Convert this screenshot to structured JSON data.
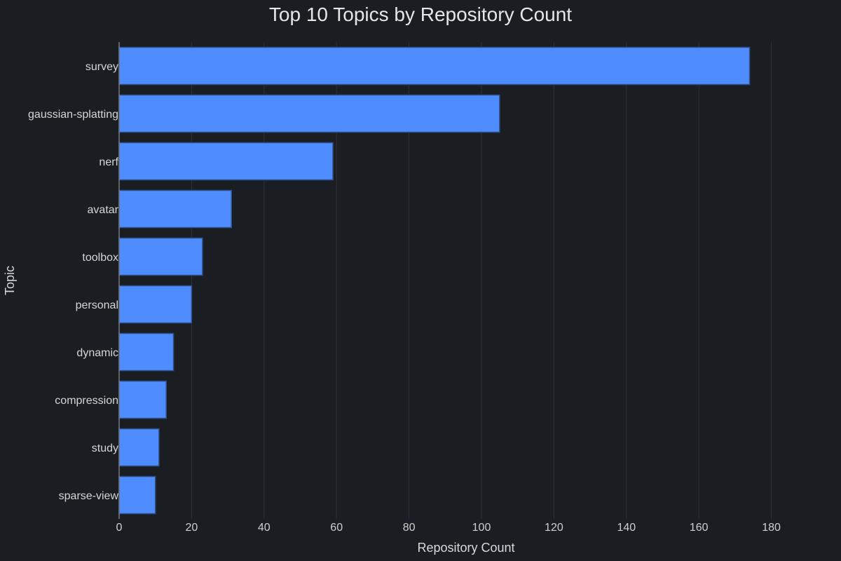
{
  "chart_data": {
    "type": "bar",
    "orientation": "horizontal",
    "title": "Top 10 Topics by Repository Count",
    "xlabel": "Repository Count",
    "ylabel": "Topic",
    "categories": [
      "survey",
      "gaussian-splatting",
      "nerf",
      "avatar",
      "toolbox",
      "personal",
      "dynamic",
      "compression",
      "study",
      "sparse-view"
    ],
    "values": [
      174,
      105,
      59,
      31,
      23,
      20,
      15,
      13,
      11,
      10
    ],
    "xlim": [
      0,
      190
    ],
    "xticks": [
      0,
      20,
      40,
      60,
      80,
      100,
      120,
      140,
      160,
      180
    ],
    "grid": "vertical",
    "colors": {
      "background": "#1a1d22",
      "bar": "#4f8dff",
      "bar_edge": "#2f4f8a",
      "grid": "#2d3138",
      "text": "#d6d6d6"
    }
  }
}
